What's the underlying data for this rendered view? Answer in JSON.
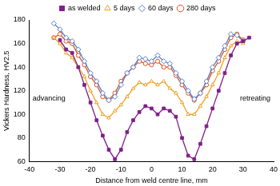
{
  "chart_data": {
    "type": "line",
    "x_label": "Distance from weld centre line, mm",
    "y_label": "Vickers Hardness, HV2.5",
    "annotations": [
      "advancing",
      "retreating"
    ],
    "x": [
      -32,
      -30,
      -28,
      -26,
      -24,
      -22,
      -20,
      -18,
      -16,
      -14,
      -12,
      -10,
      -8,
      -6,
      -4,
      -2,
      0,
      2,
      4,
      6,
      8,
      10,
      12,
      14,
      16,
      18,
      20,
      22,
      24,
      26,
      28,
      30,
      32
    ],
    "series": [
      {
        "name": "as welded",
        "color": "#80208a",
        "marker": "square",
        "line_style": "solid",
        "values": [
          null,
          163,
          155,
          152,
          140,
          125,
          110,
          95,
          82,
          70,
          62,
          70,
          85,
          95,
          102,
          107,
          105,
          100,
          105,
          103,
          98,
          80,
          65,
          62,
          75,
          90,
          105,
          120,
          135,
          150,
          160,
          162,
          165
        ]
      },
      {
        "name": "5 days",
        "color": "#f0a020",
        "marker": "open triangle",
        "line_style": "solid",
        "values": [
          165,
          160,
          152,
          148,
          140,
          132,
          120,
          110,
          100,
          97,
          103,
          108,
          115,
          122,
          127,
          125,
          128,
          125,
          128,
          122,
          118,
          110,
          100,
          100,
          107,
          115,
          125,
          135,
          148,
          158,
          162,
          160,
          null
        ]
      },
      {
        "name": "60 days",
        "color": "#5a7fc8",
        "marker": "open diamond",
        "line_style": "solid",
        "values": [
          177,
          172,
          165,
          162,
          155,
          145,
          135,
          128,
          118,
          112,
          115,
          125,
          135,
          140,
          148,
          147,
          145,
          150,
          145,
          143,
          135,
          128,
          120,
          113,
          118,
          128,
          140,
          148,
          158,
          168,
          167,
          162,
          null
        ]
      },
      {
        "name": "280 days",
        "color": "#e05020",
        "marker": "open circle",
        "line_style": "solid",
        "values": [
          165,
          168,
          162,
          160,
          150,
          142,
          132,
          125,
          115,
          112,
          118,
          128,
          135,
          140,
          145,
          143,
          142,
          145,
          140,
          140,
          133,
          125,
          118,
          112,
          118,
          125,
          137,
          145,
          155,
          165,
          168,
          163,
          null
        ]
      }
    ],
    "xlim": [
      -40,
      40
    ],
    "xticks": [
      -40,
      -30,
      -20,
      -10,
      0,
      10,
      20,
      30,
      40
    ],
    "ylim": [
      60,
      180
    ],
    "yticks": [
      60,
      80,
      100,
      120,
      140,
      160,
      180
    ],
    "grid": false,
    "legend": "top"
  }
}
